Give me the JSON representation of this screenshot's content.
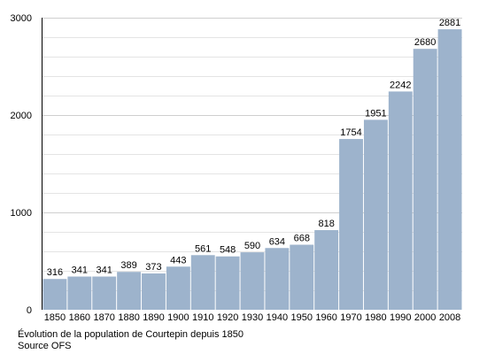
{
  "chart_data": {
    "type": "bar",
    "categories": [
      "1850",
      "1860",
      "1870",
      "1880",
      "1890",
      "1900",
      "1910",
      "1920",
      "1930",
      "1940",
      "1950",
      "1960",
      "1970",
      "1980",
      "1990",
      "2000",
      "2008"
    ],
    "values": [
      316,
      341,
      341,
      389,
      373,
      443,
      561,
      548,
      590,
      634,
      668,
      818,
      1754,
      1951,
      2242,
      2680,
      2881
    ],
    "ylim": [
      0,
      3000
    ],
    "yticks": [
      0,
      1000,
      2000,
      3000
    ],
    "grid": true,
    "bar_color": "#9db3cc",
    "caption_lines": [
      "Évolution de la population de Courtepin depuis 1850",
      "Source OFS"
    ]
  }
}
